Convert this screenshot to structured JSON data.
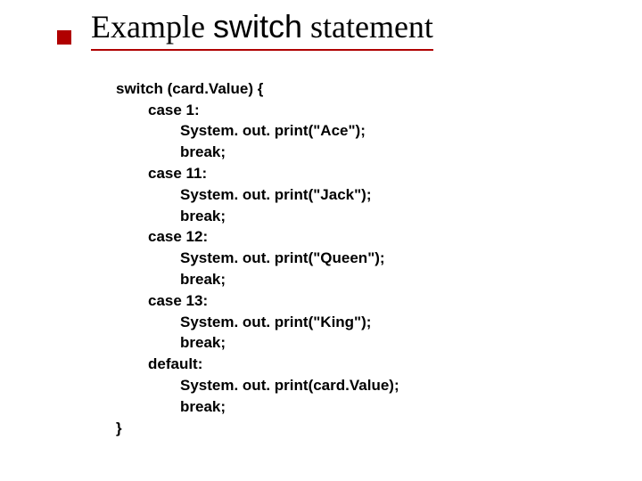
{
  "title": {
    "pre": "Example ",
    "kw": "switch",
    "post": " statement"
  },
  "code": {
    "l0": "switch (card.Value) {",
    "l1": "case 1:",
    "l2": "System. out. print(\"Ace\");",
    "l3": "break;",
    "l4": "case 11:",
    "l5": "System. out. print(\"Jack\");",
    "l6": "break;",
    "l7": "case 12:",
    "l8": "System. out. print(\"Queen\");",
    "l9": "break;",
    "l10": "case 13:",
    "l11": "System. out. print(\"King\");",
    "l12": "break;",
    "l13": "default:",
    "l14": "System. out. print(card.Value);",
    "l15": "break;",
    "l16": "}"
  },
  "colors": {
    "accent": "#b00000",
    "text": "#000000",
    "background": "#ffffff"
  },
  "typography": {
    "title_font": "Times New Roman",
    "title_size_pt": 36,
    "code_font": "Trebuchet MS",
    "code_size_pt": 17,
    "code_weight": "bold"
  }
}
